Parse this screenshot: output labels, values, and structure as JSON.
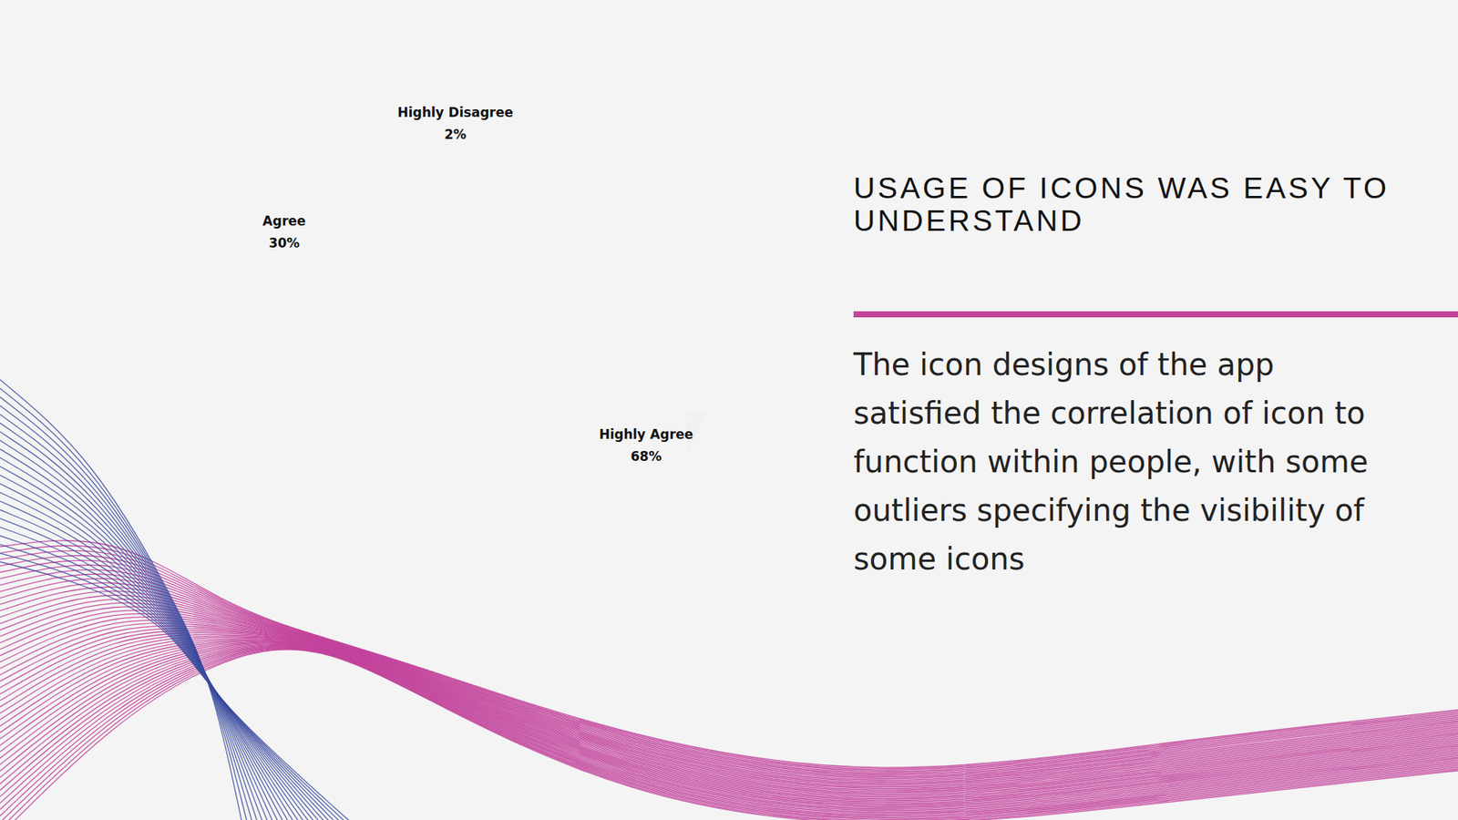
{
  "chart_data": {
    "type": "pie",
    "title": "USAGE OF ICONS WAS EASY TO UNDERSTAND",
    "subtitle": "The icon designs of the app satisfied the correlation of icon to function within people, with some outliers specifying the visibility of some icons",
    "categories": [
      "Highly Agree",
      "Agree",
      "Highly Disagree"
    ],
    "values": [
      68,
      30,
      2
    ],
    "value_labels": [
      "68%",
      "30%",
      "2%"
    ],
    "data_labels": true,
    "colors": [
      "#f1f1f1",
      "#efefef",
      "#ededed"
    ]
  }
}
